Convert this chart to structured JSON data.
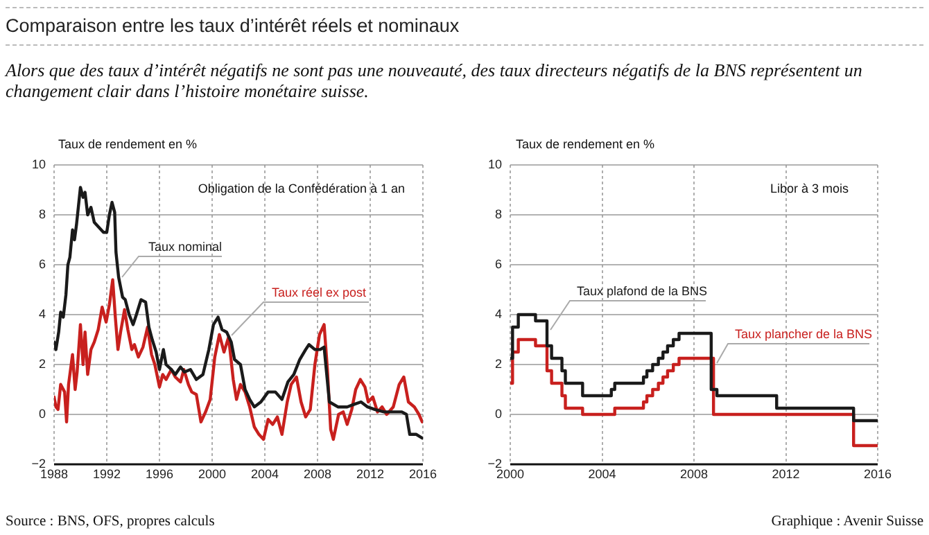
{
  "chart_data": [
    {
      "type": "line",
      "title": "Comparaison entre les taux d’intérêt réels et nominaux",
      "subtitle": "Alors que des taux d’intérêt négatifs ne sont pas une nouveauté, des taux directeurs négatifs de la BNS représentent un changement clair dans l’histoire monétaire suisse.",
      "ylabel": "Taux de rendement en %",
      "annotations": [
        "Obligation de la Confédération à 1 an",
        "Source : BNS, OFS, propres calculs"
      ],
      "xlim": [
        1988,
        2016
      ],
      "xticks": [
        1988,
        1992,
        1996,
        2000,
        2004,
        2008,
        2012,
        2016
      ],
      "ylim": [
        -2,
        10
      ],
      "yticks": [
        -2,
        0,
        2,
        4,
        6,
        8,
        10
      ],
      "grid": true,
      "legend": false,
      "marker": "none",
      "series": [
        {
          "name": "Taux nominal",
          "color": "#1a1a1a",
          "x": [
            1988.0,
            1988.14,
            1988.35,
            1988.5,
            1988.7,
            1988.9,
            1989.05,
            1989.2,
            1989.4,
            1989.55,
            1989.7,
            1990.0,
            1990.2,
            1990.35,
            1990.55,
            1990.8,
            1991.05,
            1991.4,
            1991.75,
            1992.0,
            1992.2,
            1992.4,
            1992.6,
            1992.7,
            1992.9,
            1993.2,
            1993.4,
            1993.7,
            1994.0,
            1994.25,
            1994.6,
            1994.95,
            1995.2,
            1995.45,
            1995.75,
            1996.0,
            1996.3,
            1996.5,
            1996.9,
            1997.2,
            1997.6,
            1997.9,
            1998.35,
            1998.8,
            1999.3,
            1999.75,
            2000.1,
            2000.45,
            2000.75,
            2001.1,
            2001.45,
            2001.7,
            2002.15,
            2002.5,
            2002.85,
            2003.2,
            2003.7,
            2004.25,
            2004.8,
            2005.3,
            2005.75,
            2006.2,
            2006.65,
            2007.1,
            2007.35,
            2007.8,
            2008.2,
            2008.5,
            2008.9,
            2009.55,
            2010.25,
            2010.75,
            2011.3,
            2011.8,
            2012.35,
            2013.05,
            2013.75,
            2014.4,
            2014.75,
            2015.0,
            2015.5,
            2015.95
          ],
          "values": [
            2.9,
            2.6,
            3.3,
            4.1,
            3.9,
            4.8,
            6.0,
            6.3,
            7.4,
            7.0,
            7.6,
            9.1,
            8.7,
            8.9,
            8.0,
            8.3,
            7.7,
            7.5,
            7.3,
            7.3,
            8.0,
            8.5,
            8.1,
            6.5,
            5.5,
            4.7,
            4.6,
            4.0,
            3.6,
            4.0,
            4.6,
            4.5,
            3.5,
            3.0,
            2.5,
            1.8,
            2.6,
            2.0,
            1.8,
            1.6,
            1.9,
            1.7,
            1.8,
            1.4,
            1.6,
            2.6,
            3.6,
            3.9,
            3.4,
            3.3,
            2.9,
            2.2,
            2.0,
            1.0,
            0.6,
            0.3,
            0.5,
            0.9,
            0.9,
            0.6,
            1.3,
            1.6,
            2.2,
            2.6,
            2.8,
            2.6,
            2.6,
            2.7,
            0.5,
            0.3,
            0.3,
            0.4,
            0.5,
            0.3,
            0.2,
            0.1,
            0.1,
            0.1,
            0.0,
            -0.8,
            -0.8,
            -0.95
          ]
        },
        {
          "name": "Taux réel ex post",
          "color": "#c8201e",
          "x": [
            1988.0,
            1988.14,
            1988.3,
            1988.5,
            1988.8,
            1988.95,
            1989.1,
            1989.4,
            1989.6,
            1989.75,
            1990.0,
            1990.2,
            1990.35,
            1990.55,
            1990.8,
            1991.05,
            1991.35,
            1991.65,
            1991.95,
            1992.2,
            1992.45,
            1992.65,
            1992.85,
            1993.05,
            1993.35,
            1993.6,
            1993.9,
            1994.1,
            1994.4,
            1994.75,
            1995.1,
            1995.4,
            1995.65,
            1996.0,
            1996.25,
            1996.5,
            1996.9,
            1997.2,
            1997.6,
            1997.85,
            1998.2,
            1998.45,
            1998.8,
            1999.15,
            1999.5,
            1999.85,
            2000.2,
            2000.55,
            2000.9,
            2001.25,
            2001.6,
            2001.85,
            2002.15,
            2002.5,
            2002.85,
            2003.2,
            2003.55,
            2003.9,
            2004.25,
            2004.6,
            2004.95,
            2005.3,
            2005.7,
            2006.0,
            2006.4,
            2006.75,
            2007.1,
            2007.45,
            2007.8,
            2008.15,
            2008.5,
            2008.75,
            2009.0,
            2009.2,
            2009.6,
            2009.95,
            2010.25,
            2010.6,
            2010.9,
            2011.25,
            2011.6,
            2011.85,
            2012.2,
            2012.55,
            2012.9,
            2013.25,
            2013.75,
            2014.2,
            2014.55,
            2014.9,
            2015.35,
            2015.7,
            2015.95
          ],
          "values": [
            0.7,
            0.3,
            0.2,
            1.2,
            0.9,
            -0.3,
            1.2,
            2.4,
            1.0,
            1.7,
            3.6,
            2.0,
            3.3,
            1.6,
            2.6,
            2.9,
            3.4,
            4.3,
            3.7,
            4.4,
            5.4,
            3.9,
            2.6,
            3.3,
            4.2,
            3.4,
            2.6,
            2.8,
            2.3,
            2.7,
            3.5,
            2.4,
            2.0,
            1.1,
            1.6,
            1.4,
            1.8,
            1.5,
            1.3,
            1.8,
            1.2,
            0.9,
            0.8,
            -0.3,
            0.1,
            0.6,
            2.3,
            3.2,
            2.5,
            3.1,
            1.4,
            0.6,
            1.2,
            0.9,
            0.3,
            -0.5,
            -0.8,
            -1.0,
            -0.2,
            -0.4,
            -0.1,
            -0.8,
            0.5,
            1.2,
            1.5,
            0.5,
            -0.1,
            0.2,
            2.0,
            3.2,
            3.6,
            1.8,
            -0.6,
            -1.0,
            0.0,
            0.1,
            -0.4,
            0.2,
            1.0,
            1.4,
            1.1,
            0.5,
            0.7,
            0.1,
            0.3,
            0.0,
            0.3,
            1.2,
            1.5,
            0.5,
            0.3,
            0.0,
            -0.3
          ]
        }
      ]
    },
    {
      "type": "step",
      "ylabel": "Taux de rendement en %",
      "annotations": [
        "Libor à 3 mois",
        "Graphique : Avenir Suisse"
      ],
      "xlim": [
        2000,
        2016
      ],
      "xticks": [
        2000,
        2004,
        2008,
        2012,
        2016
      ],
      "ylim": [
        -2,
        10
      ],
      "yticks": [
        -2,
        0,
        2,
        4,
        6,
        8,
        10
      ],
      "grid": true,
      "legend": false,
      "marker": "none",
      "series": [
        {
          "name": "Taux plafond de la BNS",
          "color": "#1a1a1a",
          "x": [
            2000.0,
            2000.1,
            2000.35,
            2001.1,
            2001.6,
            2001.8,
            2002.25,
            2002.4,
            2003.15,
            2004.4,
            2004.55,
            2005.8,
            2005.95,
            2006.2,
            2006.45,
            2006.65,
            2006.85,
            2007.1,
            2007.35,
            2008.75,
            2008.85,
            2009.0,
            2011.6,
            2014.95,
            2016.0
          ],
          "values": [
            2.25,
            3.5,
            4.0,
            3.75,
            2.75,
            2.25,
            1.75,
            1.25,
            0.75,
            1.0,
            1.25,
            1.5,
            1.75,
            2.0,
            2.25,
            2.5,
            2.75,
            3.0,
            3.25,
            1.0,
            1.0,
            0.75,
            0.25,
            -0.25,
            -0.25
          ]
        },
        {
          "name": "Taux plancher de la BNS",
          "color": "#c8201e",
          "x": [
            2000.0,
            2000.1,
            2000.35,
            2001.1,
            2001.6,
            2001.8,
            2002.25,
            2002.4,
            2003.15,
            2004.55,
            2005.8,
            2005.95,
            2006.2,
            2006.45,
            2006.65,
            2006.85,
            2007.1,
            2007.35,
            2008.85,
            2014.95,
            2016.0
          ],
          "values": [
            1.25,
            2.5,
            3.0,
            2.75,
            1.75,
            1.25,
            0.75,
            0.25,
            0.0,
            0.25,
            0.5,
            0.75,
            1.0,
            1.25,
            1.5,
            1.75,
            2.0,
            2.25,
            0.0,
            -1.25,
            -1.25
          ]
        }
      ]
    }
  ]
}
